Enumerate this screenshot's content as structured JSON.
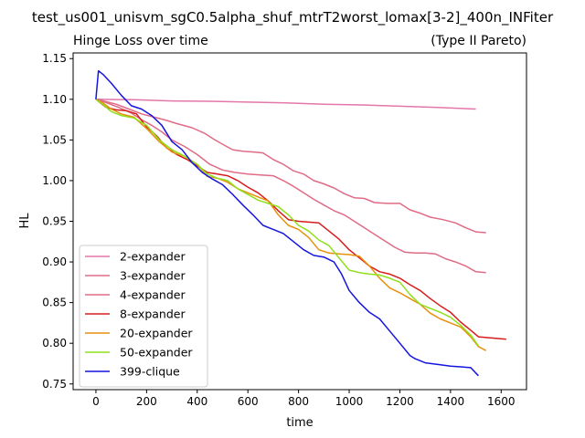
{
  "chart_data": {
    "type": "line",
    "suptitle": "test_us001_unisvm_sgC0.5alpha_shuf_mtrT2worst_lomax[3-2]_400n_INFiter",
    "title_left": "Hinge Loss over time",
    "title_right": "(Type II Pareto)",
    "xlabel": "time",
    "ylabel": "HL",
    "xlim": [
      -90,
      1700
    ],
    "ylim": [
      0.743,
      1.157
    ],
    "xticks": [
      0,
      200,
      400,
      600,
      800,
      1000,
      1200,
      1400,
      1600
    ],
    "xtick_labels": [
      "0",
      "200",
      "400",
      "600",
      "800",
      "1000",
      "1200",
      "1400",
      "1600"
    ],
    "yticks": [
      0.75,
      0.8,
      0.85,
      0.9,
      0.95,
      1.0,
      1.05,
      1.1,
      1.15
    ],
    "ytick_labels": [
      "0.75",
      "0.80",
      "0.85",
      "0.90",
      "0.95",
      "1.00",
      "1.05",
      "1.10",
      "1.15"
    ],
    "legend_position": "lower-left",
    "grid": false,
    "series": [
      {
        "name": "2-expander",
        "color": "#e377a9",
        "points": [
          [
            0,
            1.1
          ],
          [
            150,
            1.0995
          ],
          [
            300,
            1.098
          ],
          [
            450,
            1.0975
          ],
          [
            600,
            1.0965
          ],
          [
            750,
            1.0955
          ],
          [
            900,
            1.094
          ],
          [
            1050,
            1.093
          ],
          [
            1200,
            1.0915
          ],
          [
            1350,
            1.09
          ],
          [
            1500,
            1.088
          ]
        ]
      },
      {
        "name": "3-expander",
        "color": "#e06b86",
        "points": [
          [
            0,
            1.1
          ],
          [
            30,
            1.098
          ],
          [
            80,
            1.094
          ],
          [
            130,
            1.088
          ],
          [
            180,
            1.082
          ],
          [
            230,
            1.078
          ],
          [
            280,
            1.074
          ],
          [
            320,
            1.07
          ],
          [
            380,
            1.065
          ],
          [
            430,
            1.058
          ],
          [
            470,
            1.05
          ],
          [
            510,
            1.043
          ],
          [
            540,
            1.038
          ],
          [
            580,
            1.036
          ],
          [
            630,
            1.035
          ],
          [
            660,
            1.034
          ],
          [
            700,
            1.026
          ],
          [
            740,
            1.02
          ],
          [
            780,
            1.012
          ],
          [
            820,
            1.008
          ],
          [
            860,
            1.0
          ],
          [
            900,
            0.996
          ],
          [
            940,
            0.991
          ],
          [
            980,
            0.984
          ],
          [
            1020,
            0.979
          ],
          [
            1060,
            0.978
          ],
          [
            1100,
            0.973
          ],
          [
            1150,
            0.972
          ],
          [
            1200,
            0.972
          ],
          [
            1240,
            0.964
          ],
          [
            1280,
            0.96
          ],
          [
            1320,
            0.955
          ],
          [
            1370,
            0.952
          ],
          [
            1420,
            0.948
          ],
          [
            1460,
            0.942
          ],
          [
            1500,
            0.937
          ],
          [
            1540,
            0.936
          ]
        ]
      },
      {
        "name": "4-expander",
        "color": "#e06b86",
        "points": [
          [
            0,
            1.1
          ],
          [
            40,
            1.096
          ],
          [
            90,
            1.09
          ],
          [
            140,
            1.083
          ],
          [
            180,
            1.075
          ],
          [
            220,
            1.068
          ],
          [
            260,
            1.06
          ],
          [
            300,
            1.05
          ],
          [
            350,
            1.042
          ],
          [
            400,
            1.032
          ],
          [
            450,
            1.02
          ],
          [
            500,
            1.013
          ],
          [
            550,
            1.01
          ],
          [
            600,
            1.008
          ],
          [
            650,
            1.007
          ],
          [
            700,
            1.006
          ],
          [
            740,
            1.0
          ],
          [
            780,
            0.993
          ],
          [
            820,
            0.985
          ],
          [
            860,
            0.977
          ],
          [
            900,
            0.97
          ],
          [
            940,
            0.963
          ],
          [
            980,
            0.958
          ],
          [
            1020,
            0.95
          ],
          [
            1060,
            0.942
          ],
          [
            1100,
            0.934
          ],
          [
            1140,
            0.926
          ],
          [
            1180,
            0.918
          ],
          [
            1220,
            0.912
          ],
          [
            1260,
            0.911
          ],
          [
            1300,
            0.911
          ],
          [
            1340,
            0.91
          ],
          [
            1380,
            0.904
          ],
          [
            1420,
            0.9
          ],
          [
            1460,
            0.895
          ],
          [
            1500,
            0.888
          ],
          [
            1540,
            0.887
          ]
        ]
      },
      {
        "name": "8-expander",
        "color": "#d61c1c",
        "points": [
          [
            0,
            1.1
          ],
          [
            40,
            1.09
          ],
          [
            80,
            1.087
          ],
          [
            120,
            1.086
          ],
          [
            160,
            1.082
          ],
          [
            200,
            1.066
          ],
          [
            240,
            1.055
          ],
          [
            280,
            1.04
          ],
          [
            320,
            1.032
          ],
          [
            360,
            1.026
          ],
          [
            400,
            1.018
          ],
          [
            440,
            1.01
          ],
          [
            480,
            1.008
          ],
          [
            520,
            1.006
          ],
          [
            560,
            1.0
          ],
          [
            600,
            0.992
          ],
          [
            640,
            0.985
          ],
          [
            680,
            0.975
          ],
          [
            720,
            0.963
          ],
          [
            760,
            0.952
          ],
          [
            800,
            0.95
          ],
          [
            840,
            0.949
          ],
          [
            880,
            0.948
          ],
          [
            920,
            0.938
          ],
          [
            960,
            0.928
          ],
          [
            1000,
            0.915
          ],
          [
            1040,
            0.905
          ],
          [
            1080,
            0.895
          ],
          [
            1120,
            0.888
          ],
          [
            1160,
            0.885
          ],
          [
            1200,
            0.88
          ],
          [
            1240,
            0.872
          ],
          [
            1280,
            0.865
          ],
          [
            1320,
            0.855
          ],
          [
            1360,
            0.846
          ],
          [
            1400,
            0.838
          ],
          [
            1440,
            0.826
          ],
          [
            1480,
            0.816
          ],
          [
            1510,
            0.808
          ],
          [
            1620,
            0.805
          ]
        ]
      },
      {
        "name": "20-expander",
        "color": "#e8900c",
        "points": [
          [
            0,
            1.1
          ],
          [
            30,
            1.095
          ],
          [
            60,
            1.088
          ],
          [
            100,
            1.082
          ],
          [
            150,
            1.078
          ],
          [
            200,
            1.064
          ],
          [
            250,
            1.048
          ],
          [
            300,
            1.035
          ],
          [
            350,
            1.03
          ],
          [
            400,
            1.02
          ],
          [
            440,
            1.005
          ],
          [
            480,
            1.003
          ],
          [
            520,
            0.998
          ],
          [
            560,
            0.99
          ],
          [
            600,
            0.985
          ],
          [
            640,
            0.98
          ],
          [
            680,
            0.975
          ],
          [
            720,
            0.958
          ],
          [
            760,
            0.945
          ],
          [
            800,
            0.94
          ],
          [
            840,
            0.93
          ],
          [
            880,
            0.915
          ],
          [
            920,
            0.911
          ],
          [
            960,
            0.91
          ],
          [
            1000,
            0.909
          ],
          [
            1040,
            0.907
          ],
          [
            1080,
            0.895
          ],
          [
            1120,
            0.88
          ],
          [
            1160,
            0.868
          ],
          [
            1200,
            0.862
          ],
          [
            1240,
            0.855
          ],
          [
            1280,
            0.848
          ],
          [
            1320,
            0.837
          ],
          [
            1360,
            0.83
          ],
          [
            1400,
            0.825
          ],
          [
            1440,
            0.82
          ],
          [
            1480,
            0.808
          ],
          [
            1510,
            0.796
          ],
          [
            1540,
            0.791
          ]
        ]
      },
      {
        "name": "50-expander",
        "color": "#8ee01b",
        "points": [
          [
            0,
            1.1
          ],
          [
            30,
            1.093
          ],
          [
            60,
            1.085
          ],
          [
            100,
            1.08
          ],
          [
            150,
            1.077
          ],
          [
            200,
            1.068
          ],
          [
            250,
            1.05
          ],
          [
            300,
            1.038
          ],
          [
            350,
            1.03
          ],
          [
            400,
            1.02
          ],
          [
            440,
            1.008
          ],
          [
            480,
            1.003
          ],
          [
            520,
            1.0
          ],
          [
            560,
            0.99
          ],
          [
            600,
            0.983
          ],
          [
            640,
            0.976
          ],
          [
            680,
            0.972
          ],
          [
            720,
            0.968
          ],
          [
            760,
            0.958
          ],
          [
            800,
            0.945
          ],
          [
            840,
            0.938
          ],
          [
            880,
            0.927
          ],
          [
            920,
            0.92
          ],
          [
            960,
            0.905
          ],
          [
            1000,
            0.89
          ],
          [
            1040,
            0.887
          ],
          [
            1080,
            0.885
          ],
          [
            1120,
            0.884
          ],
          [
            1160,
            0.88
          ],
          [
            1200,
            0.875
          ],
          [
            1240,
            0.86
          ],
          [
            1280,
            0.848
          ],
          [
            1320,
            0.843
          ],
          [
            1360,
            0.838
          ],
          [
            1400,
            0.832
          ],
          [
            1440,
            0.822
          ],
          [
            1480,
            0.81
          ],
          [
            1510,
            0.797
          ]
        ]
      },
      {
        "name": "399-clique",
        "color": "#1515e0",
        "points": [
          [
            0,
            1.1
          ],
          [
            10,
            1.135
          ],
          [
            30,
            1.13
          ],
          [
            60,
            1.12
          ],
          [
            100,
            1.105
          ],
          [
            140,
            1.092
          ],
          [
            180,
            1.088
          ],
          [
            220,
            1.08
          ],
          [
            260,
            1.068
          ],
          [
            300,
            1.048
          ],
          [
            340,
            1.038
          ],
          [
            380,
            1.022
          ],
          [
            420,
            1.01
          ],
          [
            460,
            1.002
          ],
          [
            500,
            0.995
          ],
          [
            540,
            0.983
          ],
          [
            580,
            0.97
          ],
          [
            620,
            0.958
          ],
          [
            660,
            0.945
          ],
          [
            700,
            0.94
          ],
          [
            740,
            0.935
          ],
          [
            780,
            0.925
          ],
          [
            820,
            0.915
          ],
          [
            860,
            0.908
          ],
          [
            900,
            0.906
          ],
          [
            940,
            0.9
          ],
          [
            970,
            0.885
          ],
          [
            1000,
            0.865
          ],
          [
            1040,
            0.85
          ],
          [
            1080,
            0.838
          ],
          [
            1120,
            0.83
          ],
          [
            1160,
            0.815
          ],
          [
            1200,
            0.8
          ],
          [
            1240,
            0.785
          ],
          [
            1260,
            0.781
          ],
          [
            1300,
            0.776
          ],
          [
            1350,
            0.774
          ],
          [
            1400,
            0.772
          ],
          [
            1440,
            0.771
          ],
          [
            1480,
            0.77
          ],
          [
            1510,
            0.76
          ]
        ]
      }
    ]
  }
}
